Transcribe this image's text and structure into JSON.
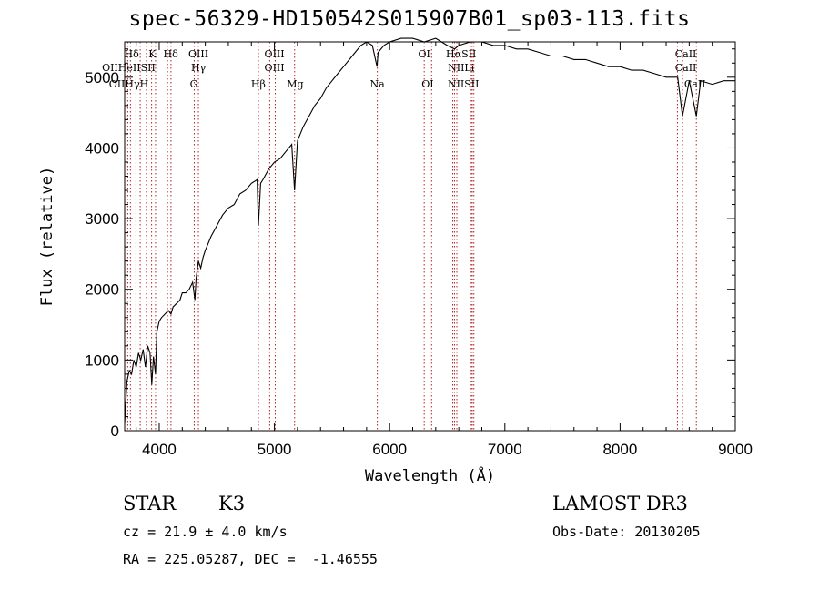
{
  "title": "spec-56329-HD150542S015907B01_sp03-113.fits",
  "chart_data": {
    "type": "line",
    "xlabel": "Wavelength (Å)",
    "ylabel": "Flux (relative)",
    "xlim": [
      3700,
      9000
    ],
    "ylim": [
      0,
      5500
    ],
    "xticks": [
      4000,
      5000,
      6000,
      7000,
      8000,
      9000
    ],
    "yticks": [
      0,
      1000,
      2000,
      3000,
      4000,
      5000
    ],
    "grid": false,
    "series": [
      {
        "x": [
          3700,
          3720,
          3740,
          3760,
          3780,
          3800,
          3820,
          3840,
          3860,
          3880,
          3900,
          3920,
          3935,
          3950,
          3968,
          3980,
          4000,
          4020,
          4050,
          4080,
          4102,
          4120,
          4150,
          4180,
          4200,
          4230,
          4260,
          4290,
          4310,
          4320,
          4340,
          4360,
          4380,
          4400,
          4450,
          4500,
          4550,
          4600,
          4650,
          4700,
          4750,
          4800,
          4850,
          4861,
          4880,
          4900,
          4950,
          5000,
          5050,
          5100,
          5150,
          5175,
          5200,
          5250,
          5300,
          5350,
          5400,
          5450,
          5500,
          5550,
          5600,
          5650,
          5700,
          5750,
          5800,
          5850,
          5890,
          5900,
          5950,
          6000,
          6100,
          6200,
          6300,
          6400,
          6500,
          6563,
          6600,
          6700,
          6800,
          6900,
          7000,
          7100,
          7200,
          7300,
          7400,
          7500,
          7600,
          7700,
          7800,
          7900,
          8000,
          8100,
          8200,
          8300,
          8400,
          8500,
          8542,
          8600,
          8662,
          8700,
          8800,
          8900,
          9000
        ],
        "y": [
          100,
          700,
          850,
          800,
          1000,
          900,
          1100,
          1000,
          1150,
          900,
          1200,
          1100,
          650,
          1050,
          800,
          1400,
          1550,
          1600,
          1650,
          1700,
          1650,
          1750,
          1800,
          1850,
          1950,
          1950,
          2000,
          2100,
          1850,
          2150,
          2400,
          2300,
          2450,
          2550,
          2750,
          2900,
          3050,
          3150,
          3200,
          3350,
          3400,
          3500,
          3550,
          2900,
          3500,
          3550,
          3700,
          3800,
          3850,
          3950,
          4050,
          3400,
          4100,
          4300,
          4450,
          4600,
          4700,
          4850,
          4950,
          5050,
          5150,
          5250,
          5350,
          5450,
          5500,
          5450,
          5150,
          5350,
          5450,
          5500,
          5550,
          5550,
          5500,
          5550,
          5450,
          5400,
          5450,
          5500,
          5500,
          5450,
          5450,
          5400,
          5400,
          5350,
          5300,
          5300,
          5250,
          5250,
          5200,
          5150,
          5150,
          5100,
          5100,
          5050,
          5000,
          5000,
          4450,
          4950,
          4450,
          4950,
          4900,
          4950,
          4950
        ]
      }
    ],
    "lines_upper": [
      {
        "label": "Hδ",
        "w": 4102
      },
      {
        "label": "K",
        "w": 3934
      },
      {
        "label": "Hδ",
        "w": 4102
      },
      {
        "label": "OIII",
        "w": 4363
      },
      {
        "label": "OIII",
        "w": 5007
      },
      {
        "label": "Na",
        "w": 5893
      },
      {
        "label": "OI",
        "w": 6300
      },
      {
        "label": "Hα",
        "w": 6563
      },
      {
        "label": "SII",
        "w": 6717
      },
      {
        "label": "CaII",
        "w": 8542
      }
    ],
    "lines_upper_text": {
      "row1": [
        "Hδ",
        "K",
        "Hδ",
        "OIII",
        "OIII",
        "OI",
        "HαSII",
        "CaII"
      ],
      "row2": [
        "OIIHeIISII",
        "Hγ",
        "OIII",
        "NIILi",
        "CaII"
      ],
      "row3": [
        "OIIHγH",
        "G",
        "Hβ",
        "Mg",
        "Na",
        "OI",
        "NIISII",
        "CaII"
      ]
    },
    "marker_wavelengths": [
      3727,
      3750,
      3798,
      3835,
      3889,
      3934,
      3968,
      4072,
      4102,
      4304,
      4340,
      4861,
      4959,
      5007,
      5175,
      5893,
      6300,
      6364,
      6548,
      6563,
      6583,
      6708,
      6717,
      6731,
      8498,
      8542,
      8662
    ]
  },
  "info": {
    "class_label": "STAR",
    "subclass": "K3",
    "survey": "LAMOST DR3",
    "redshift": "cz = 21.9 ± 4.0 km/s",
    "obs_date": "Obs-Date: 20130205",
    "coords": "RA = 225.05287, DEC =  -1.46555"
  }
}
